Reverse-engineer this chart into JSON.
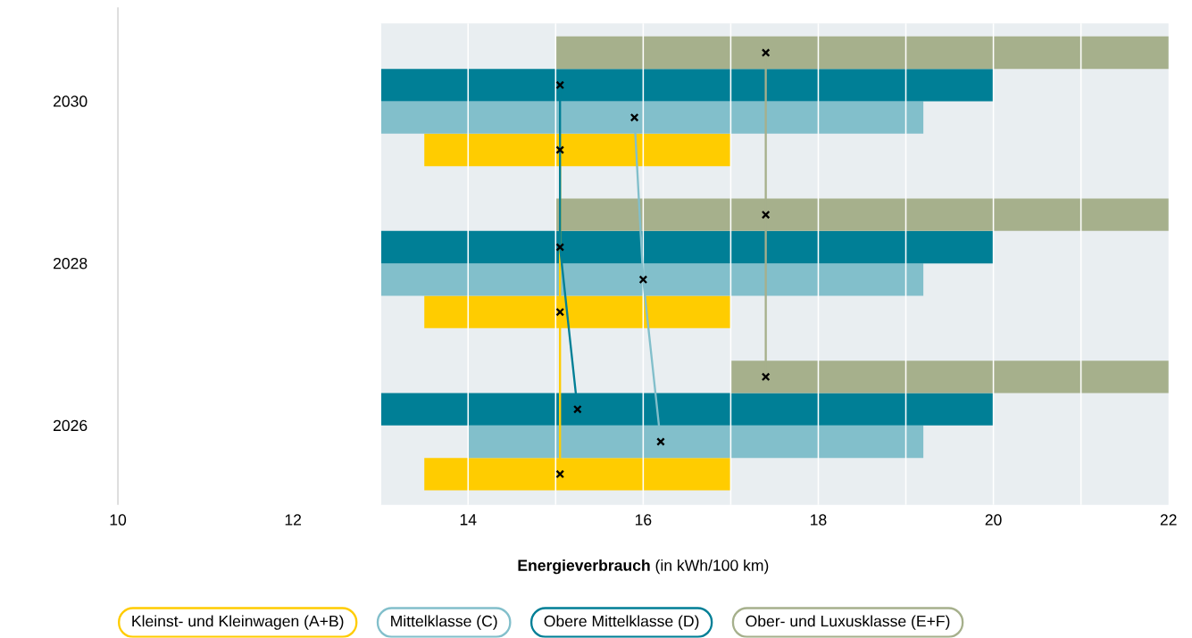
{
  "chart_data": {
    "type": "bar",
    "orientation": "horizontal",
    "xlabel": "**Energieverbrauch** (in kWh/100 km)",
    "categories": [
      "2030",
      "2028",
      "2026"
    ],
    "xlim": [
      10,
      22
    ],
    "xticks": [
      10,
      12,
      {
        "value": 13,
        "label": null
      },
      14,
      {
        "value": 15,
        "label": null
      },
      16,
      {
        "value": 17,
        "label": null
      },
      18,
      {
        "value": 19,
        "label": null
      },
      20,
      {
        "value": 21,
        "label": null
      },
      22
    ],
    "grid": "x",
    "legend": "bottom",
    "marker": "cross",
    "bands": [
      {
        "axis": "x",
        "from": 13,
        "to": 22,
        "color": "#e9eef1"
      }
    ],
    "series": [
      {
        "name": "Kleinst- und Kleinwagen (A+B)",
        "color": "#ffcc00",
        "base": [
          13.5,
          13.5,
          13.5
        ],
        "values": [
          3.5,
          3.5,
          3.5
        ]
      },
      {
        "name": "Mittelklasse (C)",
        "color": "#82bfcb",
        "base": [
          13,
          13,
          14
        ],
        "values": [
          6.2,
          6.2,
          5.2
        ]
      },
      {
        "name": "Obere Mittelklasse (D)",
        "color": "#007f96",
        "base": [
          13,
          13,
          13
        ],
        "values": [
          7,
          7,
          7
        ]
      },
      {
        "name": "Ober- und Luxusklasse (E+F)",
        "color": "#a6b08c",
        "base": [
          15,
          15,
          17
        ],
        "values": [
          7,
          7,
          5
        ]
      },
      {
        "type": "line",
        "color": "#ffcc00",
        "values": [
          15.05,
          15.05,
          15.05
        ]
      },
      {
        "type": "line",
        "color": "#82bfcb",
        "values": [
          15.9,
          16.0,
          16.2
        ]
      },
      {
        "type": "line",
        "color": "#007f96",
        "values": [
          15.05,
          15.05,
          15.25
        ]
      },
      {
        "type": "line",
        "color": "#a6b08c",
        "values": [
          17.4,
          17.4,
          17.4
        ]
      }
    ]
  }
}
